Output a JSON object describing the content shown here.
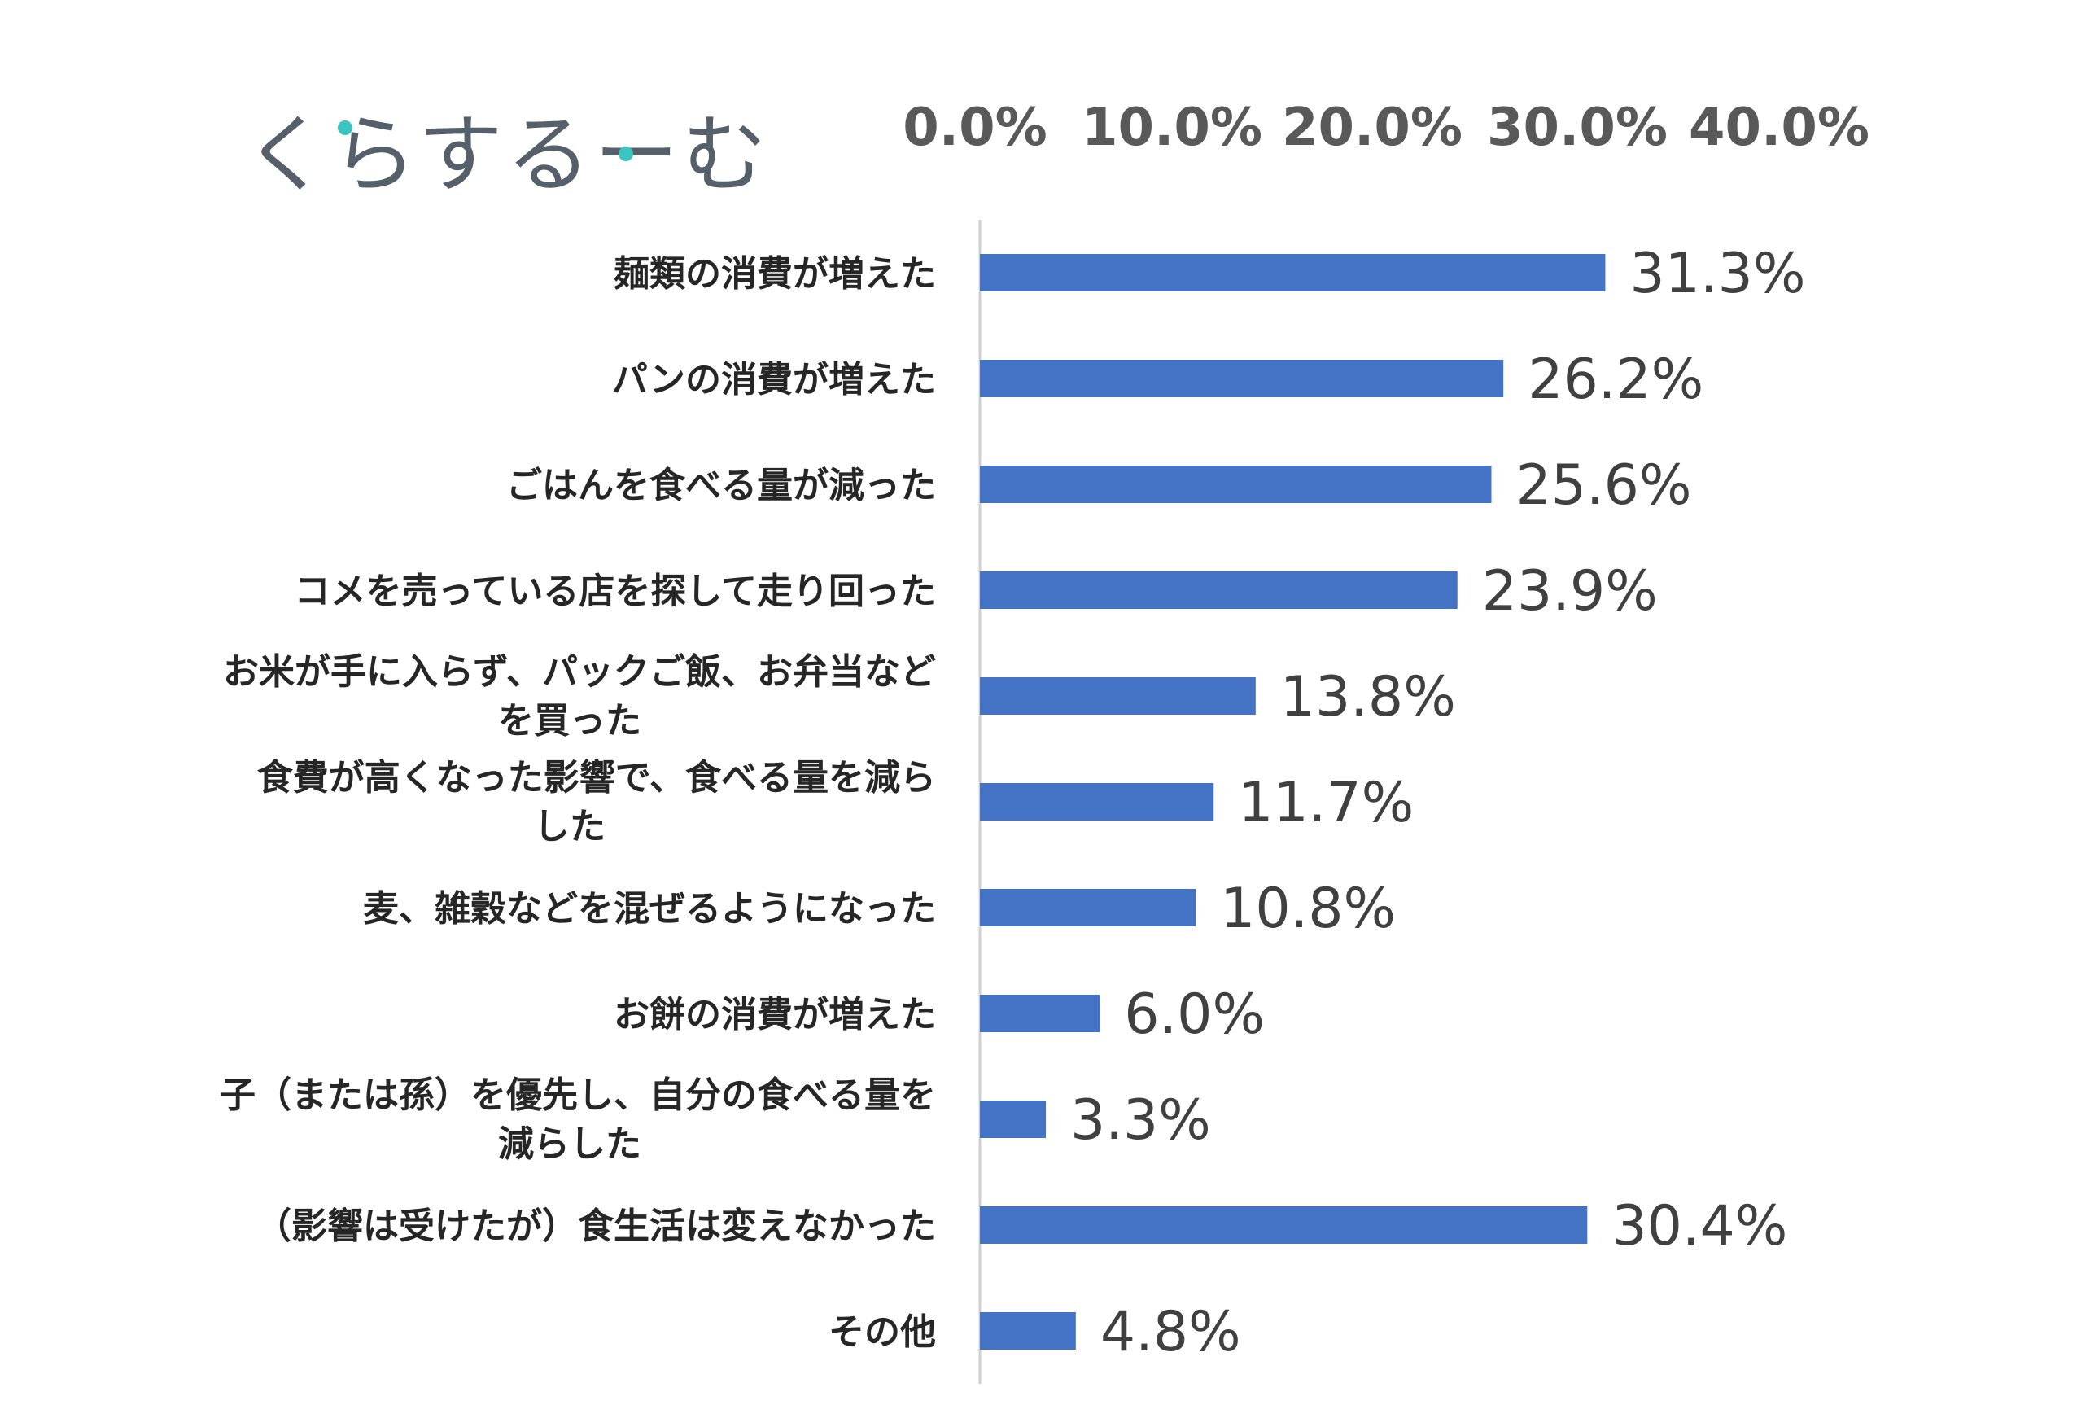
{
  "logo": {
    "text": "くらするーむ"
  },
  "chart_data": {
    "type": "bar",
    "orientation": "horizontal",
    "title": "",
    "xlabel": "",
    "ylabel": "",
    "xlim": [
      0,
      40
    ],
    "x_ticks": [
      "0.0%",
      "10.0%",
      "20.0%",
      "30.0%",
      "40.0%"
    ],
    "x_axis_position": "top",
    "grid": false,
    "bar_color": "#4472C4",
    "categories": [
      [
        "麺類の消費が増えた"
      ],
      [
        "パンの消費が増えた"
      ],
      [
        "ごはんを食べる量が減った"
      ],
      [
        "コメを売っている店を探して走り回った"
      ],
      [
        "お米が手に入らず、パックご飯、お弁当など",
        "を買った"
      ],
      [
        "食費が高くなった影響で、食べる量を減ら",
        "した"
      ],
      [
        "麦、雑穀などを混ぜるようになった"
      ],
      [
        "お餅の消費が増えた"
      ],
      [
        "子（または孫）を優先し、自分の食べる量を",
        "減らした"
      ],
      [
        "（影響は受けたが）食生活は変えなかった"
      ],
      [
        "その他"
      ]
    ],
    "values": [
      31.3,
      26.2,
      25.6,
      23.9,
      13.8,
      11.7,
      10.8,
      6.0,
      3.3,
      30.4,
      4.8
    ],
    "value_labels": [
      "31.3%",
      "26.2%",
      "25.6%",
      "23.9%",
      "13.8%",
      "11.7%",
      "10.8%",
      "6.0%",
      "3.3%",
      "30.4%",
      "4.8%"
    ]
  }
}
